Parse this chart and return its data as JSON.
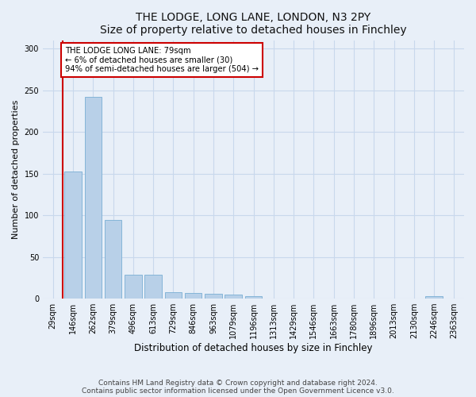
{
  "title": "THE LODGE, LONG LANE, LONDON, N3 2PY",
  "subtitle": "Size of property relative to detached houses in Finchley",
  "xlabel": "Distribution of detached houses by size in Finchley",
  "ylabel": "Number of detached properties",
  "footnote1": "Contains HM Land Registry data © Crown copyright and database right 2024.",
  "footnote2": "Contains public sector information licensed under the Open Government Licence v3.0.",
  "bar_labels": [
    "29sqm",
    "146sqm",
    "262sqm",
    "379sqm",
    "496sqm",
    "613sqm",
    "729sqm",
    "846sqm",
    "963sqm",
    "1079sqm",
    "1196sqm",
    "1313sqm",
    "1429sqm",
    "1546sqm",
    "1663sqm",
    "1780sqm",
    "1896sqm",
    "2013sqm",
    "2130sqm",
    "2246sqm",
    "2363sqm"
  ],
  "bar_values": [
    0,
    152,
    242,
    94,
    29,
    29,
    8,
    7,
    6,
    5,
    3,
    0,
    0,
    0,
    0,
    0,
    0,
    0,
    0,
    3,
    0
  ],
  "bar_color": "#b8d0e8",
  "bar_edge_color": "#7aafd4",
  "annotation_text_line1": "THE LODGE LONG LANE: 79sqm",
  "annotation_text_line2": "← 6% of detached houses are smaller (30)",
  "annotation_text_line3": "94% of semi-detached houses are larger (504) →",
  "annotation_box_color": "#ffffff",
  "annotation_box_edge_color": "#cc0000",
  "red_line_color": "#cc0000",
  "ylim": [
    0,
    310
  ],
  "yticks": [
    0,
    50,
    100,
    150,
    200,
    250,
    300
  ],
  "grid_color": "#c8d8ec",
  "bg_color": "#e8eff8",
  "title_fontsize": 10,
  "subtitle_fontsize": 9,
  "ylabel_fontsize": 8,
  "xlabel_fontsize": 8.5,
  "tick_fontsize": 7,
  "footnote_fontsize": 6.5
}
